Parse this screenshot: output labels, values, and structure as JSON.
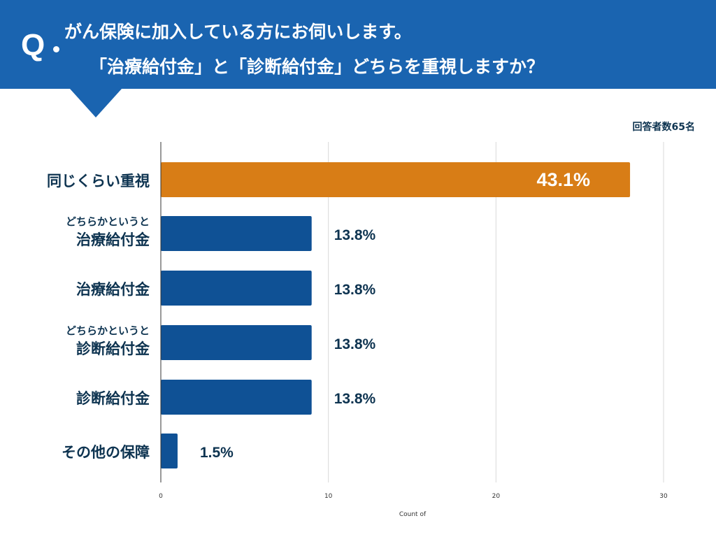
{
  "header": {
    "q_mark": "Q",
    "line1": "がん保険に加入している方にお伺いします。",
    "line2": "「治療給付金」と「診断給付金」どちらを重視しますか？"
  },
  "respondents": "回答者数65名",
  "colors": {
    "header": "#1a64b0",
    "bar": "#0f5195",
    "highlight": "#d87d16",
    "text": "#0d3350"
  },
  "chart_data": {
    "type": "bar",
    "orientation": "horizontal",
    "categories": [
      {
        "small": "",
        "main": "同じくらい重視"
      },
      {
        "small": "どちらかというと",
        "main": "治療給付金"
      },
      {
        "small": "",
        "main": "治療給付金"
      },
      {
        "small": "どちらかというと",
        "main": "診断給付金"
      },
      {
        "small": "",
        "main": "診断給付金"
      },
      {
        "small": "",
        "main": "その他の保障"
      }
    ],
    "values": [
      28,
      9,
      9,
      9,
      9,
      1
    ],
    "data_labels": [
      "43.1%",
      "13.8%",
      "13.8%",
      "13.8%",
      "13.8%",
      "1.5%"
    ],
    "highlight_index": 0,
    "xlim": [
      0,
      30
    ],
    "xticks": [
      "0",
      "10",
      "20",
      "30"
    ],
    "xlabel": "Count of",
    "grid": true
  }
}
